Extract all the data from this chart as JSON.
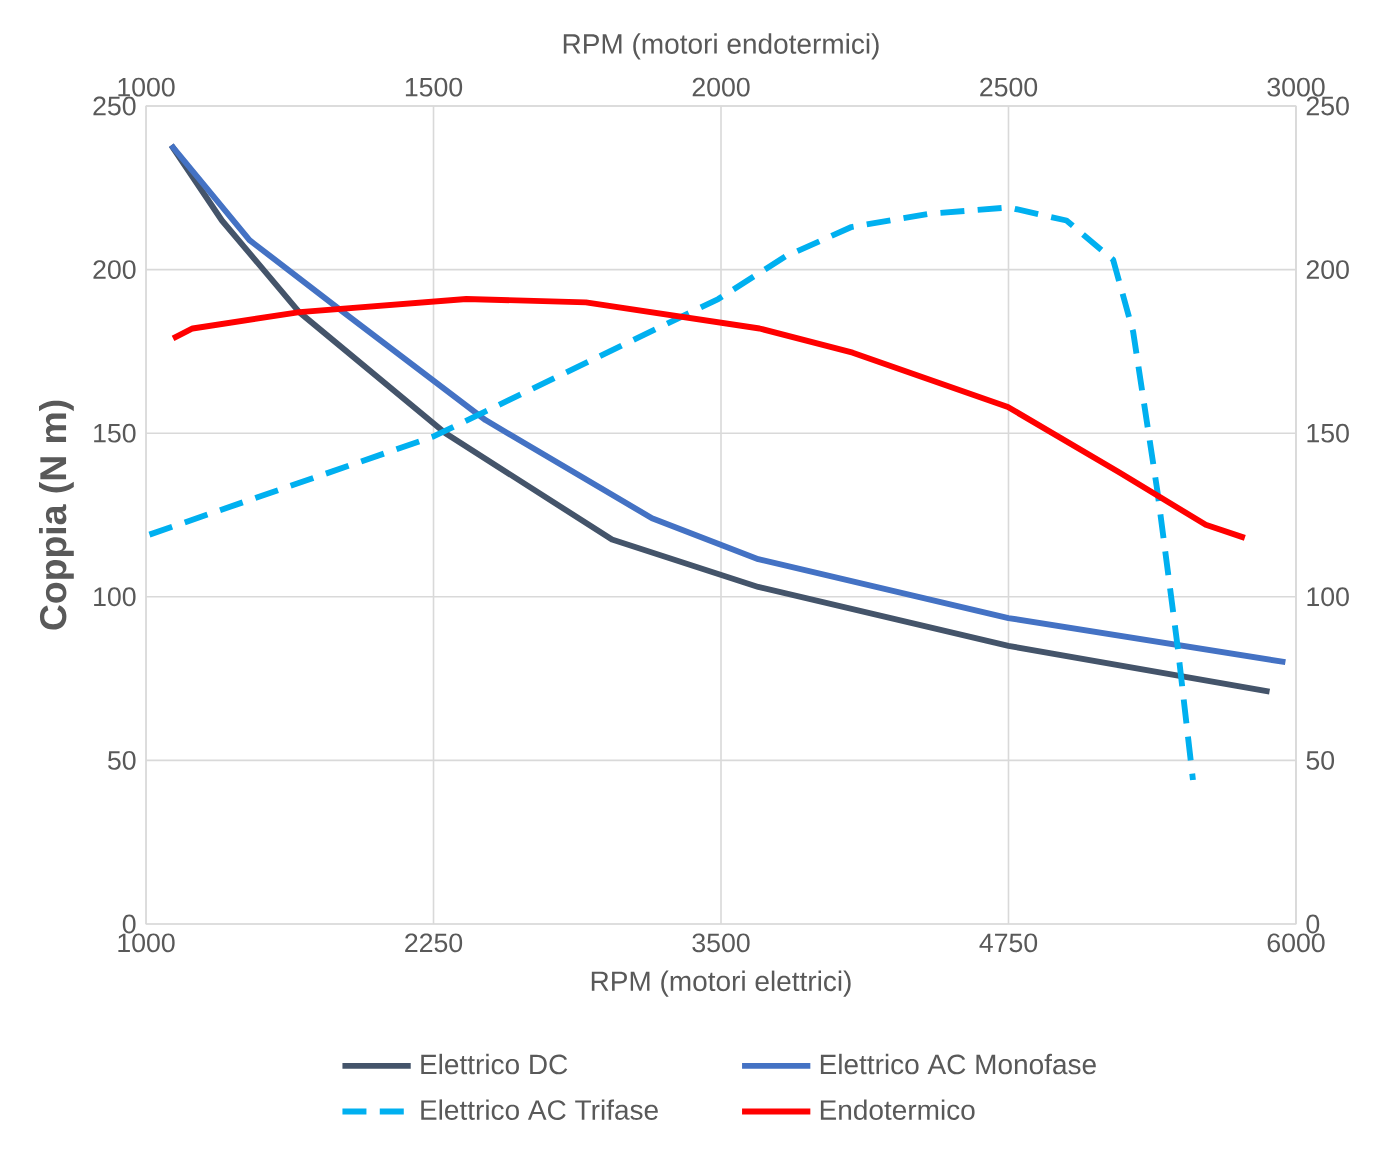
{
  "chart_data": {
    "type": "line",
    "xlabel": "RPM (motori elettrici)",
    "x2label": "RPM (motori endotermici)",
    "ylabel": "Coppia (N m)",
    "xlim": [
      1000,
      6000
    ],
    "xticks": [
      1000,
      2250,
      3500,
      4750,
      6000
    ],
    "x2lim": [
      1000,
      3000
    ],
    "x2ticks": [
      1000,
      1500,
      2000,
      2500,
      3000
    ],
    "ylim": [
      0,
      250
    ],
    "yticks": [
      0,
      50,
      100,
      150,
      200,
      250
    ],
    "y2lim": [
      0,
      250
    ],
    "y2ticks": [
      0,
      50,
      100,
      150,
      200,
      250
    ],
    "grid": true,
    "legend": "bottom",
    "marker": "none",
    "series": [
      {
        "name": "Elettrico DC",
        "color": "#44546a",
        "line_style": "solid",
        "x": [
          1110,
          1330,
          1666,
          2302,
          3026,
          3662,
          4750,
          5885
        ],
        "values": [
          238,
          215,
          187,
          150,
          117.5,
          103,
          85,
          71
        ]
      },
      {
        "name": "Elettrico AC Monofase",
        "color": "#4472c4",
        "line_style": "solid",
        "x": [
          1110,
          1450,
          1839,
          2476,
          3200,
          3662,
          4750,
          5954
        ],
        "values": [
          238,
          209,
          188,
          154,
          124,
          111.5,
          93.5,
          80
        ]
      },
      {
        "name": "Elettrico AC Trifase",
        "color": "#00b0f0",
        "line_style": "dashed",
        "x": [
          1015,
          2250,
          3488,
          3780,
          4067,
          4400,
          4750,
          5002,
          5205,
          5292,
          5398,
          5485,
          5552
        ],
        "values": [
          119,
          149,
          191,
          204,
          213,
          217,
          219,
          215,
          203,
          181,
          132,
          85,
          44
        ]
      },
      {
        "name": "Endotermico",
        "color": "#ff0000",
        "line_style": "solid",
        "axis": "x2",
        "x": [
          1047,
          1081,
          1267,
          1557,
          1765,
          2067,
          2229,
          2499,
          2693,
          2843,
          2911
        ],
        "values": [
          179,
          182,
          187,
          191,
          190,
          182,
          174.6,
          158,
          138,
          122,
          118
        ]
      }
    ]
  }
}
